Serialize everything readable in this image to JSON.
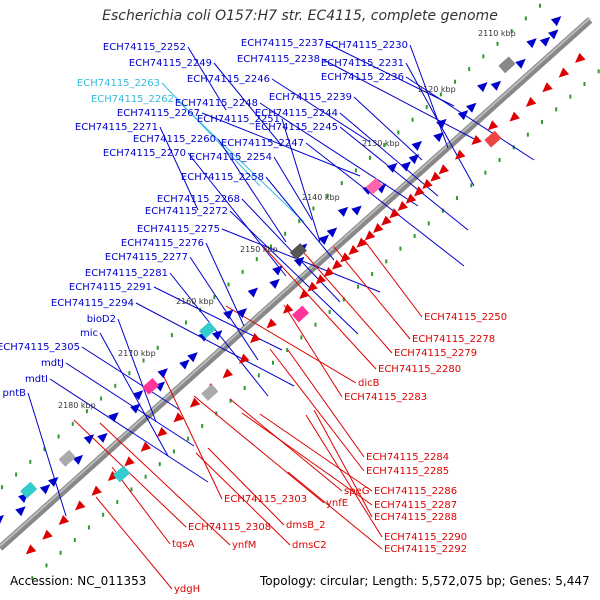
{
  "title": "Escherichia coli O157:H7 str. EC4115, complete genome",
  "footer": {
    "accession": "Accession: NC_011353",
    "summary": "Topology: circular; Length: 5,572,075 bp; Genes: 5,447"
  },
  "colors": {
    "forward": "#0000cc",
    "reverse": "#dd0000",
    "highlight": "#33bbdd",
    "backbone": "#777777",
    "tick_dot": "#2f9a2f"
  },
  "ticks": [
    "2110 kbp",
    "2120 kbp",
    "2130 kbp",
    "2140 kbp",
    "2150 kbp",
    "2160 kbp",
    "2170 kbp",
    "2180 kbp"
  ],
  "forward_labels": [
    "ECH74115_2252",
    "ECH74115_2249",
    "ECH74115_2263",
    "ECH74115_2262",
    "ECH74115_2267",
    "ECH74115_2271",
    "ECH74115_2260",
    "ECH74115_2270",
    "ECH74115_2237",
    "ECH74115_2238",
    "ECH74115_2230",
    "ECH74115_2231",
    "ECH74115_2246",
    "ECH74115_2236",
    "ECH74115_2248",
    "ECH74115_2251",
    "ECH74115_2239",
    "ECH74115_2244",
    "ECH74115_2245",
    "ECH74115_2247",
    "ECH74115_2254",
    "ECH74115_2258",
    "ECH74115_2268",
    "ECH74115_2272",
    "ECH74115_2275",
    "ECH74115_2276",
    "ECH74115_2277",
    "ECH74115_2281",
    "ECH74115_2291",
    "ECH74115_2294",
    "bioD2",
    "mic",
    "ECH74115_2305",
    "mdtJ",
    "mdtI",
    "pntB"
  ],
  "reverse_labels": [
    "ECH74115_2250",
    "ECH74115_2278",
    "ECH74115_2279",
    "ECH74115_2280",
    "dicB",
    "ECH74115_2283",
    "ECH74115_2284",
    "ECH74115_2285",
    "ECH74115_2286",
    "ECH74115_2287",
    "ECH74115_2288",
    "ECH74115_2290",
    "ECH74115_2292",
    "speG",
    "ynfE",
    "ECH74115_2303",
    "dmsB_2",
    "dmsC2",
    "ECH74115_2308",
    "ynfM",
    "tqsA",
    "ydgH"
  ]
}
